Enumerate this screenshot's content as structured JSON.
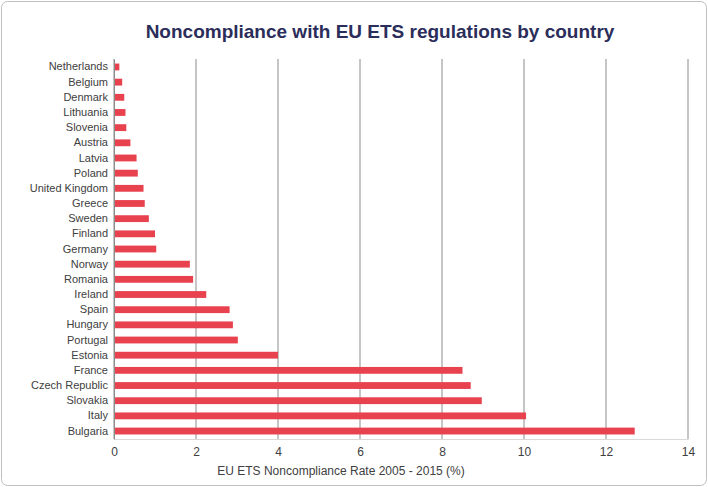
{
  "chart_data": {
    "type": "bar",
    "orientation": "horizontal",
    "title": "Noncompliance with EU ETS regulations by country",
    "x_label": "EU ETS Noncompliance Rate 2005 - 2015 (%)",
    "categories": [
      "Netherlands",
      "Belgium",
      "Denmark",
      "Lithuania",
      "Slovenia",
      "Austria",
      "Latvia",
      "Poland",
      "United Kingdom",
      "Greece",
      "Sweden",
      "Finland",
      "Germany",
      "Norway",
      "Romania",
      "Ireland",
      "Spain",
      "Hungary",
      "Portugal",
      "Estonia",
      "France",
      "Czech Republic",
      "Slovakia",
      "Italy",
      "Bulgaria"
    ],
    "values": [
      0.13,
      0.2,
      0.25,
      0.28,
      0.3,
      0.4,
      0.55,
      0.58,
      0.72,
      0.75,
      0.85,
      1.0,
      1.03,
      1.85,
      1.93,
      2.25,
      2.82,
      2.9,
      3.02,
      4.0,
      8.5,
      8.7,
      8.97,
      10.05,
      12.7
    ],
    "color": "#e8424f",
    "xlim": [
      0,
      14
    ],
    "xticks": [
      0,
      2,
      4,
      6,
      8,
      10,
      12,
      14
    ],
    "grid": true
  }
}
